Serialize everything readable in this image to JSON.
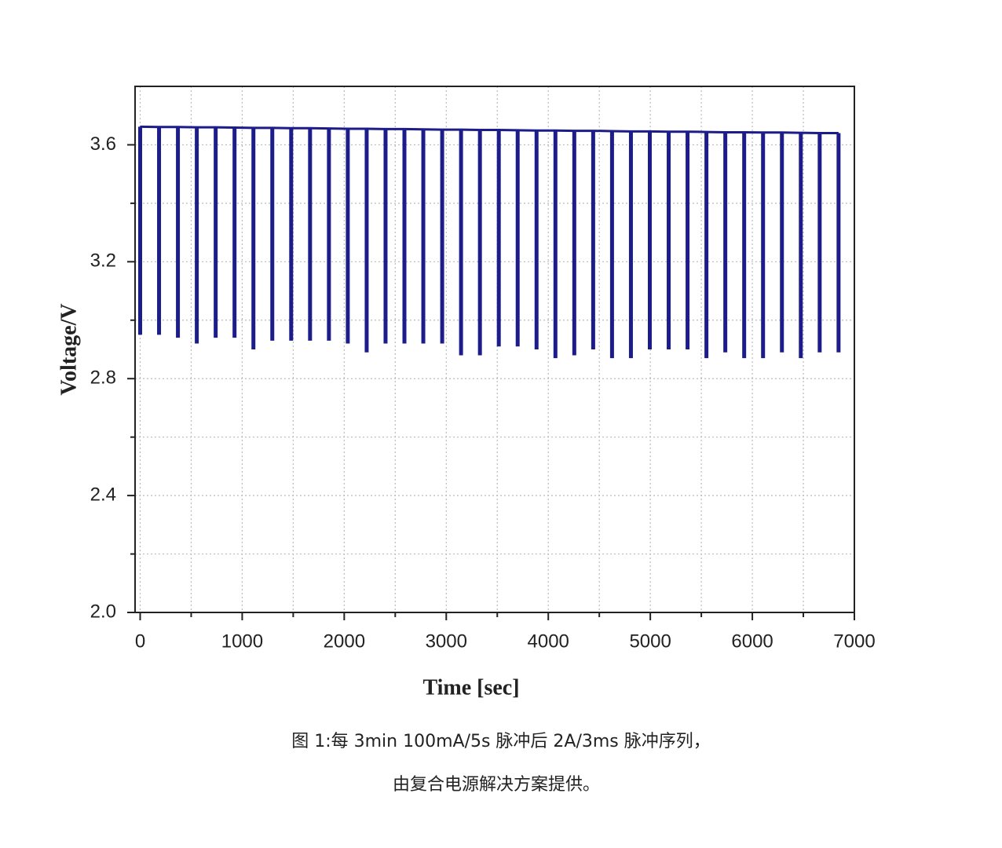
{
  "chart_data": {
    "type": "line",
    "xlabel": "Time [sec]",
    "ylabel": "Voltage/V",
    "caption": [
      "图 1:每 3min 100mA/5s 脉冲后 2A/3ms 脉冲序列，",
      "由复合电源解决方案提供。"
    ],
    "x": [
      0,
      185,
      370,
      555,
      740,
      925,
      1110,
      1295,
      1480,
      1665,
      1850,
      2035,
      2220,
      2405,
      2590,
      2775,
      2960,
      3145,
      3330,
      3515,
      3700,
      3885,
      4070,
      4255,
      4440,
      4625,
      4810,
      4995,
      5180,
      5365,
      5550,
      5735,
      5920,
      6105,
      6290,
      6475,
      6660,
      6845
    ],
    "series": [
      {
        "color": "#1c1c8a",
        "values": [
          3.662,
          3.661,
          3.661,
          3.66,
          3.66,
          3.659,
          3.658,
          3.658,
          3.657,
          3.657,
          3.656,
          3.655,
          3.655,
          3.654,
          3.654,
          3.653,
          3.652,
          3.652,
          3.651,
          3.651,
          3.65,
          3.649,
          3.649,
          3.648,
          3.648,
          3.647,
          3.646,
          3.646,
          3.645,
          3.645,
          3.644,
          3.643,
          3.643,
          3.642,
          3.642,
          3.641,
          3.64,
          3.64
        ],
        "min_values": [
          2.95,
          2.95,
          2.94,
          2.92,
          2.94,
          2.94,
          2.9,
          2.93,
          2.93,
          2.93,
          2.93,
          2.92,
          2.89,
          2.92,
          2.92,
          2.92,
          2.92,
          2.88,
          2.88,
          2.91,
          2.91,
          2.9,
          2.87,
          2.88,
          2.9,
          2.87,
          2.87,
          2.9,
          2.9,
          2.9,
          2.87,
          2.89,
          2.87,
          2.87,
          2.89,
          2.87,
          2.89,
          2.89
        ]
      }
    ],
    "xlim": [
      -50,
      7000
    ],
    "xticks": [
      0,
      1000,
      2000,
      3000,
      4000,
      5000,
      6000,
      7000
    ],
    "minor_xticks": [
      500,
      1500,
      2500,
      3500,
      4500,
      5500,
      6500
    ],
    "ylim": [
      2.0,
      3.8
    ],
    "yticks": [
      {
        "value": 2,
        "label": "2.0"
      },
      2.4,
      2.8,
      3.2,
      3.6
    ],
    "minor_yticks": [
      2.2,
      2.6,
      3.0,
      3.4
    ],
    "grid": true
  }
}
